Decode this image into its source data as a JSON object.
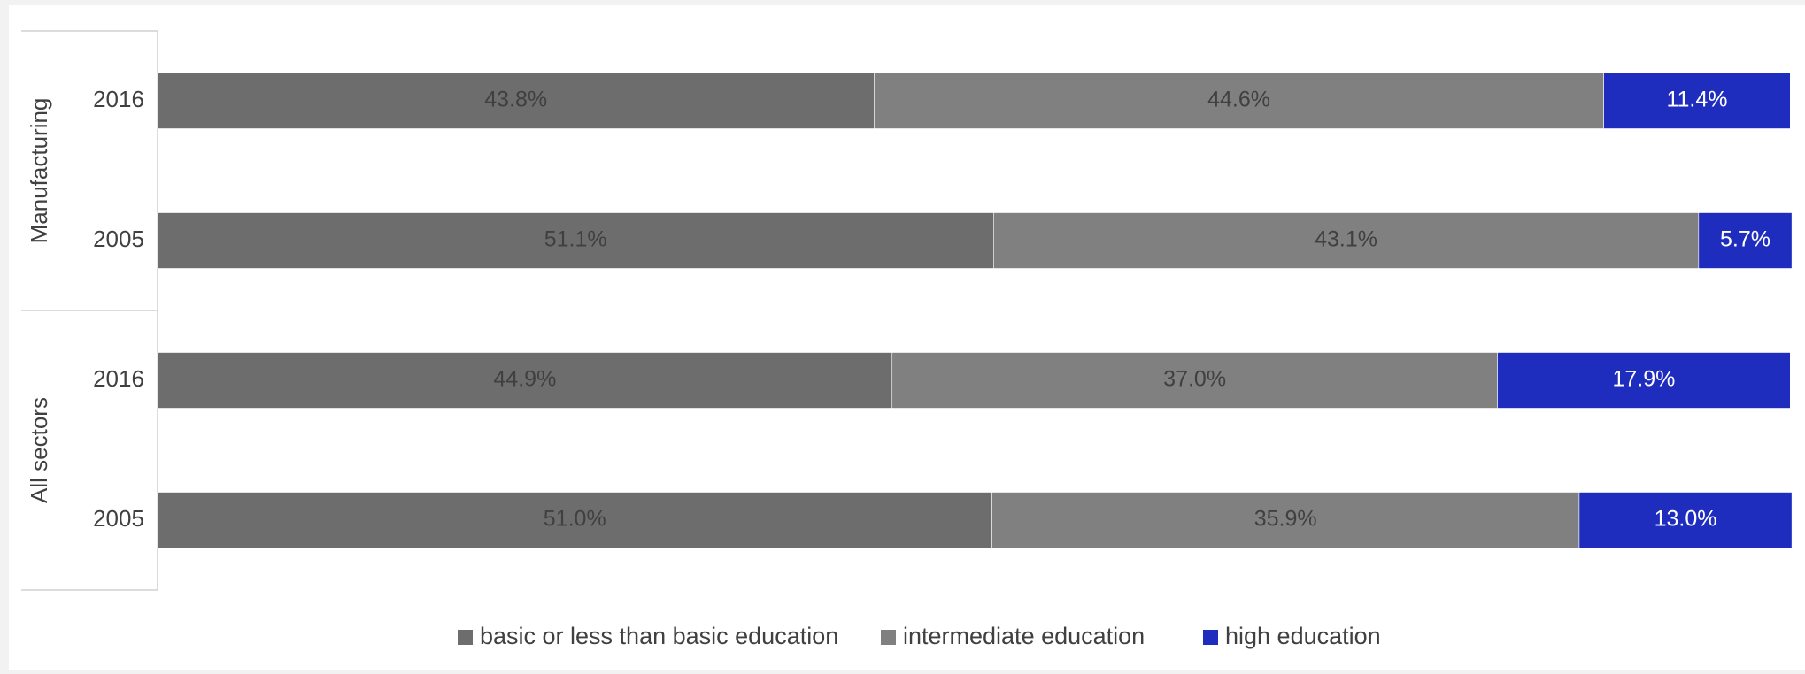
{
  "chart_data": {
    "type": "bar",
    "orientation": "horizontal",
    "stacked": true,
    "percent_scale": true,
    "xlim": [
      0,
      100
    ],
    "grid": false,
    "legend_position": "bottom",
    "groups": [
      {
        "name": "Manufacturing",
        "rows": [
          {
            "label": "2016",
            "values": [
              43.8,
              44.6,
              11.4
            ],
            "labels": [
              "43.8%",
              "44.6%",
              "11.4%"
            ]
          },
          {
            "label": "2005",
            "values": [
              51.1,
              43.1,
              5.7
            ],
            "labels": [
              "51.1%",
              "43.1%",
              "5.7%"
            ]
          }
        ]
      },
      {
        "name": "All sectors",
        "rows": [
          {
            "label": "2016",
            "values": [
              44.9,
              37.0,
              17.9
            ],
            "labels": [
              "44.9%",
              "37.0%",
              "17.9%"
            ]
          },
          {
            "label": "2005",
            "values": [
              51.0,
              35.9,
              13.0
            ],
            "labels": [
              "51.0%",
              "35.9%",
              "13.0%"
            ]
          }
        ]
      }
    ],
    "series": [
      {
        "name": "basic or less than basic education",
        "color": "#6d6d6d",
        "label_color": "#404040"
      },
      {
        "name": "intermediate education",
        "color": "#808080",
        "label_color": "#404040"
      },
      {
        "name": "high education",
        "color": "#1f2dbf",
        "label_color": "#ffffff"
      }
    ]
  }
}
